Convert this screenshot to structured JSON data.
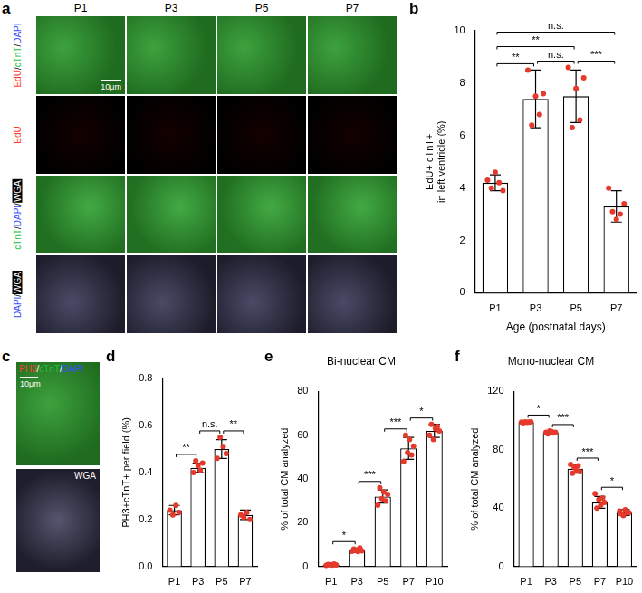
{
  "panels": {
    "a": {
      "label": "a",
      "columns": [
        "P1",
        "P3",
        "P5",
        "P7"
      ],
      "rows": [
        "EdU/cTnT/DAPI",
        "EdU",
        "cTnT/DAPI/WGA",
        "DAPI/WGA"
      ],
      "scale_bar": "10μm"
    },
    "c": {
      "label": "c",
      "images": [
        "PH3/cTnT/DAPI",
        "WGA"
      ],
      "scale_bar": "10μm"
    }
  },
  "chart_data": [
    {
      "panel": "b",
      "type": "bar",
      "x_label": "Age (postnatal days)",
      "y_label": [
        "EdU+ cTnT+",
        "in left ventricle (%)"
      ],
      "categories": [
        "P1",
        "P3",
        "P5",
        "P7"
      ],
      "values": [
        4.2,
        7.4,
        7.5,
        3.3
      ],
      "errors": [
        0.3,
        1.1,
        1.0,
        0.6
      ],
      "points": {
        "color": "#e5392c",
        "values": [
          [
            4.3,
            4.0,
            4.6,
            4.2,
            3.9
          ],
          [
            8.5,
            6.4,
            7.5,
            6.8,
            7.6
          ],
          [
            8.6,
            6.3,
            7.8,
            6.6,
            8.2
          ],
          [
            4.0,
            3.1,
            2.8,
            3.0,
            3.4
          ]
        ]
      },
      "color": "#ffffff",
      "ylim": [
        0,
        10
      ],
      "yticks": [
        0,
        2,
        4,
        6,
        8,
        10
      ],
      "grid": false,
      "significance": [
        {
          "from": "P1",
          "to": "P7",
          "label": "n.s."
        },
        {
          "from": "P1",
          "to": "P5",
          "label": "**"
        },
        {
          "from": "P1",
          "to": "P3",
          "label": "**"
        },
        {
          "from": "P3",
          "to": "P5",
          "label": "n.s."
        },
        {
          "from": "P5",
          "to": "P7",
          "label": "***"
        }
      ]
    },
    {
      "panel": "d",
      "type": "bar",
      "y_label": "PH3+cTnT+ per field (%)",
      "categories": [
        "P1",
        "P3",
        "P5",
        "P7"
      ],
      "values": [
        0.24,
        0.42,
        0.5,
        0.22
      ],
      "errors": [
        0.02,
        0.02,
        0.04,
        0.02
      ],
      "points": {
        "color": "#e5392c",
        "values": [
          [
            0.24,
            0.22,
            0.26,
            0.23
          ],
          [
            0.4,
            0.45,
            0.43,
            0.41,
            0.44
          ],
          [
            0.46,
            0.55,
            0.51,
            0.48
          ],
          [
            0.22,
            0.21,
            0.23,
            0.2
          ]
        ]
      },
      "color": "#ffffff",
      "ylim": [
        0,
        0.8
      ],
      "yticks": [
        {
          "value": 0,
          "label": "0.0"
        },
        0.2,
        0.4,
        0.6,
        0.8
      ],
      "grid": false,
      "significance": [
        {
          "from": "P1",
          "to": "P3",
          "label": "**"
        },
        {
          "from": "P3",
          "to": "P5",
          "label": "n.s."
        },
        {
          "from": "P5",
          "to": "P7",
          "label": "**"
        }
      ]
    },
    {
      "panel": "e",
      "type": "bar",
      "title": "Bi-nuclear CM",
      "y_label": "% of total CM analyzed",
      "categories": [
        "P1",
        "P3",
        "P5",
        "P7",
        "P10"
      ],
      "values": [
        0.8,
        7.5,
        32,
        54,
        62
      ],
      "errors": [
        0.5,
        1,
        3,
        5,
        3
      ],
      "points": {
        "color": "#e5392c",
        "values": [
          [
            0.5,
            1,
            0.8,
            0.6,
            1.2,
            0.7
          ],
          [
            7,
            8,
            7.5,
            6.8,
            8.5,
            7.2
          ],
          [
            28,
            36,
            31,
            34,
            30,
            33
          ],
          [
            48,
            60,
            52,
            58,
            51,
            55
          ],
          [
            60,
            65,
            58,
            63,
            64,
            62
          ]
        ]
      },
      "color": "#ffffff",
      "ylim": [
        0,
        80
      ],
      "yticks": [
        0,
        20,
        40,
        60,
        80
      ],
      "grid": false,
      "significance": [
        {
          "from": "P1",
          "to": "P3",
          "label": "*"
        },
        {
          "from": "P3",
          "to": "P5",
          "label": "***"
        },
        {
          "from": "P5",
          "to": "P7",
          "label": "***"
        },
        {
          "from": "P7",
          "to": "P10",
          "label": "*"
        }
      ]
    },
    {
      "panel": "f",
      "type": "bar",
      "title": "Mono-nuclear CM",
      "y_label": "% of total CM analyzed",
      "categories": [
        "P1",
        "P3",
        "P5",
        "P7",
        "P10"
      ],
      "values": [
        99,
        92,
        67,
        44,
        37
      ],
      "errors": [
        0.5,
        1,
        3,
        4,
        2
      ],
      "points": {
        "color": "#e5392c",
        "values": [
          [
            99,
            98.5,
            99.2,
            98.8,
            99,
            99.1
          ],
          [
            92,
            91,
            93,
            92.5,
            91.5,
            92
          ],
          [
            70,
            64,
            68,
            66,
            69,
            65
          ],
          [
            50,
            40,
            46,
            42,
            47,
            44
          ],
          [
            38,
            36,
            35,
            39,
            37,
            37
          ]
        ]
      },
      "color": "#ffffff",
      "ylim": [
        0,
        120
      ],
      "yticks": [
        0,
        40,
        80,
        120
      ],
      "grid": false,
      "significance": [
        {
          "from": "P1",
          "to": "P3",
          "label": "*"
        },
        {
          "from": "P3",
          "to": "P5",
          "label": "***"
        },
        {
          "from": "P5",
          "to": "P7",
          "label": "***"
        },
        {
          "from": "P7",
          "to": "P10",
          "label": "*"
        }
      ]
    }
  ]
}
